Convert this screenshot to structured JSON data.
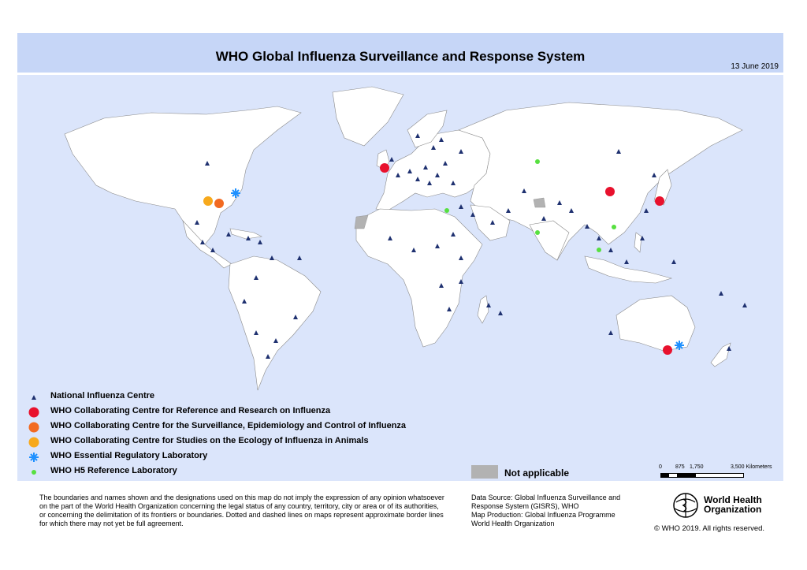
{
  "header": {
    "title": "WHO Global Influenza Surveillance and Response System",
    "date": "13 June 2019"
  },
  "legend": {
    "items": [
      {
        "symbol": "triangle",
        "color": "#1f3170",
        "label": "National Influenza Centre"
      },
      {
        "symbol": "circle",
        "color": "#e8112d",
        "label": "WHO Collaborating Centre for Reference and Research on Influenza"
      },
      {
        "symbol": "circle",
        "color": "#f26a21",
        "label": "WHO Collaborating Centre for the Surveillance, Epidemiology and Control of Influenza"
      },
      {
        "symbol": "circle",
        "color": "#f7a91c",
        "label": "WHO Collaborating Centre for Studies on the Ecology of Influenza in Animals"
      },
      {
        "symbol": "asterisk",
        "color": "#1e90ff",
        "label": "WHO Essential Regulatory Laboratory"
      },
      {
        "symbol": "dot",
        "color": "#57e040",
        "label": "WHO H5 Reference Laboratory"
      }
    ],
    "not_applicable": {
      "label": "Not applicable",
      "color": "#b2b2b2"
    }
  },
  "scale": {
    "labels": [
      "0",
      "875",
      "1,750",
      "3,500 Kilometers"
    ]
  },
  "footer": {
    "disclaimer": [
      "The boundaries and names shown and the designations used on this map do not imply the expression of any opinion whatsoever",
      "on the part of the World Health Organization concerning the legal status of any country, territory, city or area or of its authorities,",
      "or concerning the delimitation of its frontiers or boundaries. Dotted and dashed lines on maps represent approximate border lines",
      "for which there may not yet be full agreement."
    ],
    "source": [
      "Data Source: Global Influenza Surveillance and",
      "Response System (GISRS), WHO",
      "Map Production: Global Influenza Programme",
      "World Health Organization"
    ],
    "org_name_line1": "World Health",
    "org_name_line2": "Organization",
    "copyright": "© WHO 2019. All rights reserved."
  },
  "colors": {
    "ocean": "#dbe5fb",
    "header": "#c6d6f7",
    "land": "#ffffff",
    "na_area": "#b2b2b2",
    "nic": "#1f3170"
  },
  "icons": {
    "nic": "triangle-icon",
    "cc_reference": "red-circle-icon",
    "cc_surveillance": "orange-circle-icon",
    "cc_ecology": "yellow-circle-icon",
    "erl": "blue-asterisk-icon",
    "h5": "green-dot-icon"
  }
}
